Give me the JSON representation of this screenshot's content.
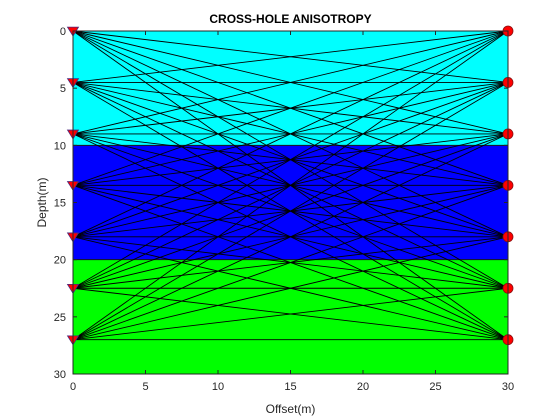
{
  "chart_data": {
    "type": "diagram",
    "title": "CROSS-HOLE ANISOTROPY",
    "xlabel": "Offset(m)",
    "ylabel": "Depth(m)",
    "xlim": [
      0,
      30
    ],
    "ylim": [
      0,
      30
    ],
    "y_reversed": true,
    "xticks": [
      0,
      5,
      10,
      15,
      20,
      25,
      30
    ],
    "yticks": [
      0,
      5,
      10,
      15,
      20,
      25,
      30
    ],
    "layers": [
      {
        "top": 0,
        "bottom": 10,
        "color": "#00ffff"
      },
      {
        "top": 10,
        "bottom": 20,
        "color": "#0000ff"
      },
      {
        "top": 20,
        "bottom": 30,
        "color": "#00ff00"
      }
    ],
    "sources": {
      "x": 0,
      "depths": [
        0,
        4.5,
        9,
        13.5,
        18,
        22.5,
        27
      ],
      "color": "#ff0000",
      "marker": "triangle-down"
    },
    "receivers": {
      "x": 30,
      "depths": [
        0,
        4.5,
        9,
        13.5,
        18,
        22.5,
        27
      ],
      "color": "#ff0000",
      "marker": "circle"
    },
    "ray_color": "#000000"
  }
}
